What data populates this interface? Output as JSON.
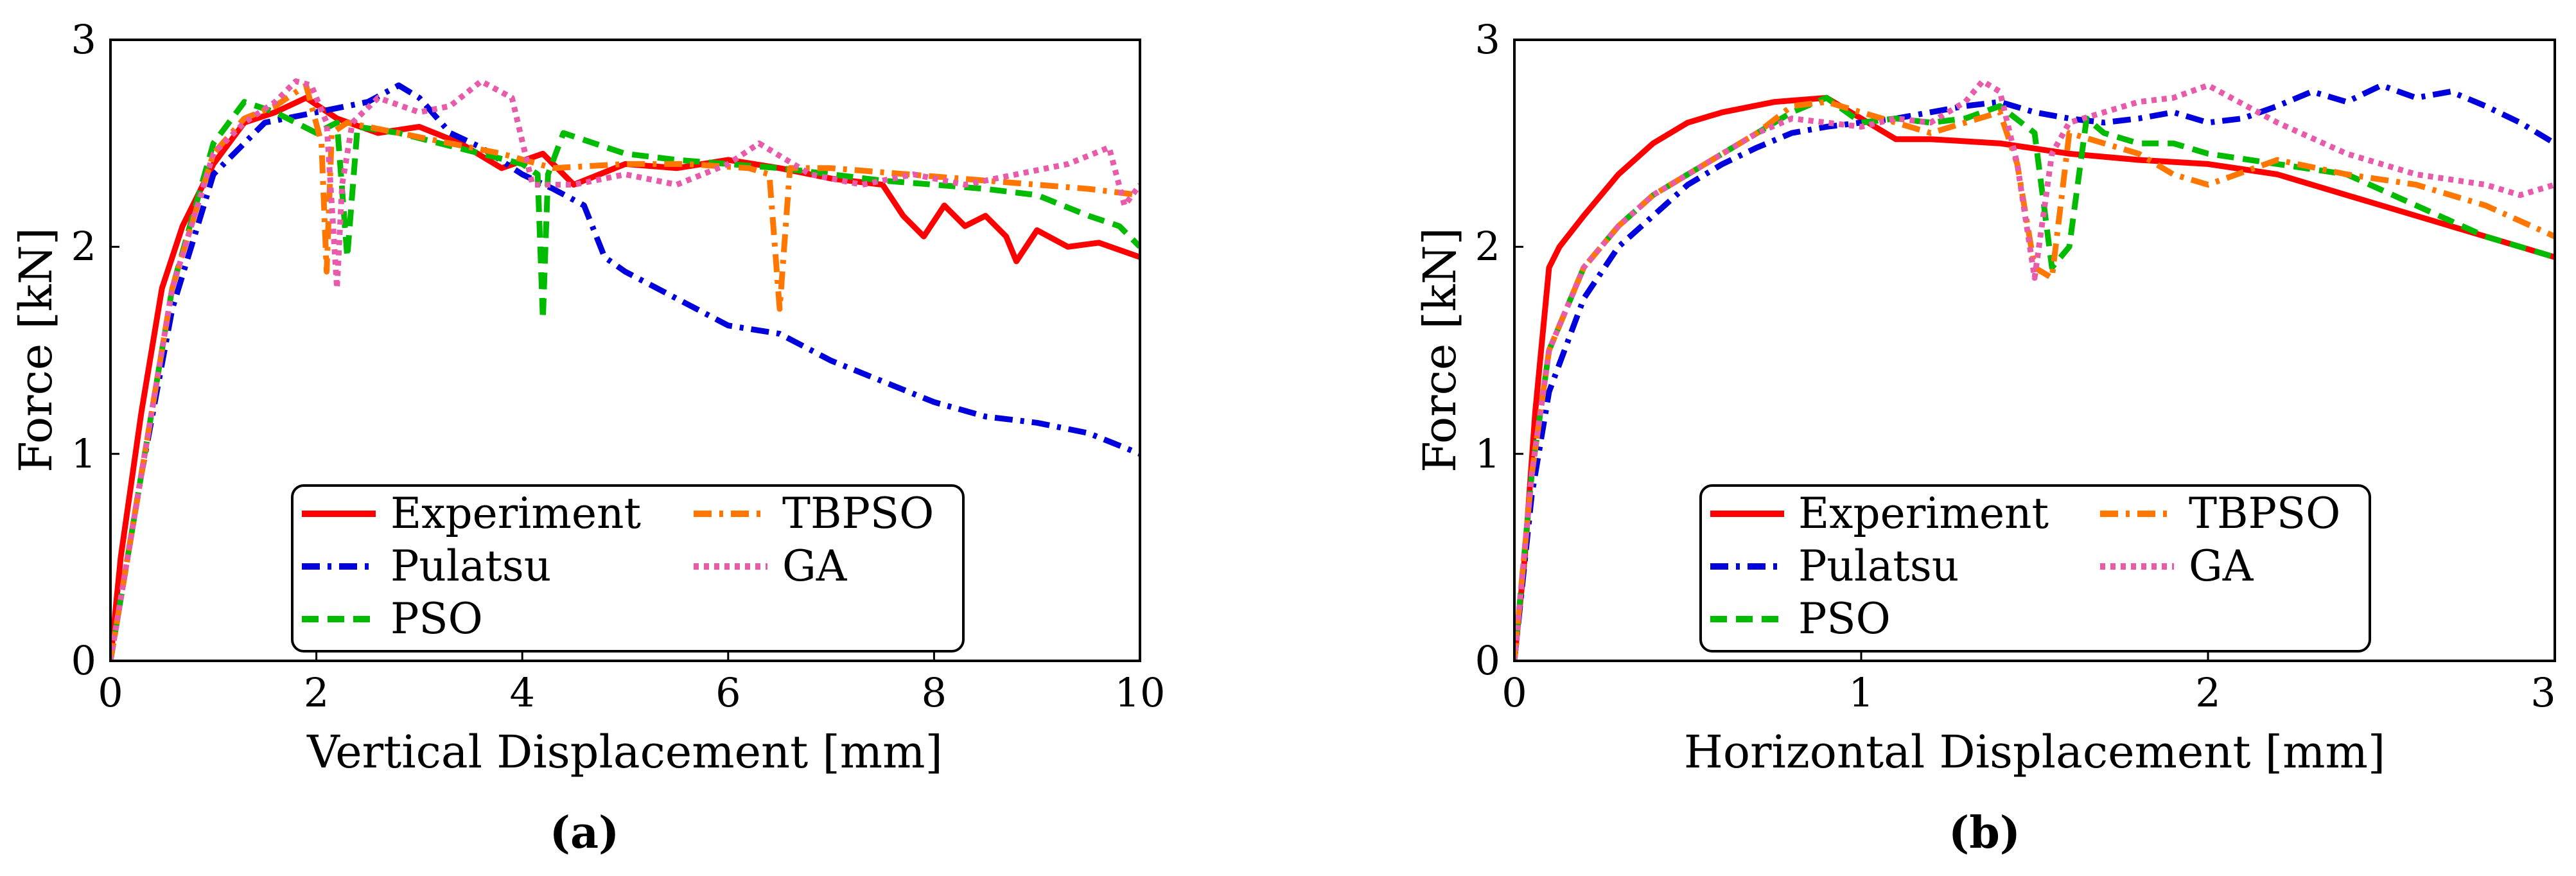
{
  "chart_data": [
    {
      "id": "a",
      "type": "line",
      "caption": "(a)",
      "xlabel": "Vertical Displacement [mm]",
      "ylabel": "Force [kN]",
      "xlim": [
        0,
        10
      ],
      "ylim": [
        0,
        3
      ],
      "xticks": [
        "0",
        "2",
        "4",
        "6",
        "8",
        "10"
      ],
      "yticks": [
        "0",
        "1",
        "2",
        "3"
      ],
      "legend_position": "bottom-center",
      "series": [
        {
          "name": "Experiment",
          "color": "#ff0000",
          "style": "solid",
          "x": [
            0,
            0.1,
            0.3,
            0.5,
            0.7,
            1.0,
            1.3,
            1.6,
            1.9,
            2.2,
            2.6,
            3.0,
            3.4,
            3.8,
            4.2,
            4.5,
            5.0,
            5.5,
            6.0,
            6.5,
            7.0,
            7.5,
            7.7,
            7.9,
            8.1,
            8.3,
            8.5,
            8.7,
            8.8,
            9.0,
            9.3,
            9.6,
            10.0
          ],
          "y": [
            0,
            0.5,
            1.2,
            1.8,
            2.1,
            2.4,
            2.6,
            2.65,
            2.72,
            2.62,
            2.55,
            2.58,
            2.5,
            2.38,
            2.45,
            2.3,
            2.4,
            2.38,
            2.42,
            2.38,
            2.33,
            2.3,
            2.15,
            2.05,
            2.2,
            2.1,
            2.15,
            2.05,
            1.93,
            2.08,
            2.0,
            2.02,
            1.95
          ]
        },
        {
          "name": "Pulatsu",
          "color": "#0000dd",
          "style": "dashdot",
          "x": [
            0,
            0.3,
            0.6,
            1.0,
            1.5,
            2.0,
            2.5,
            2.8,
            3.0,
            3.3,
            3.6,
            4.0,
            4.3,
            4.6,
            4.8,
            5.0,
            5.5,
            6.0,
            6.5,
            7.0,
            7.5,
            8.0,
            8.5,
            9.0,
            9.5,
            10.0
          ],
          "y": [
            0,
            0.9,
            1.7,
            2.35,
            2.6,
            2.65,
            2.7,
            2.78,
            2.72,
            2.55,
            2.48,
            2.35,
            2.28,
            2.2,
            1.95,
            1.88,
            1.75,
            1.62,
            1.58,
            1.45,
            1.35,
            1.25,
            1.18,
            1.15,
            1.1,
            1.0
          ]
        },
        {
          "name": "PSO",
          "color": "#00bb00",
          "style": "dashed",
          "x": [
            0,
            0.3,
            0.6,
            1.0,
            1.3,
            1.6,
            2.0,
            2.2,
            2.3,
            2.4,
            2.8,
            3.2,
            3.6,
            4.0,
            4.15,
            4.2,
            4.25,
            4.4,
            5.0,
            5.5,
            6.0,
            6.5,
            7.0,
            7.5,
            8.0,
            8.5,
            9.0,
            9.5,
            9.8,
            10.0
          ],
          "y": [
            0,
            0.9,
            1.8,
            2.5,
            2.7,
            2.65,
            2.55,
            2.6,
            1.95,
            2.58,
            2.55,
            2.5,
            2.45,
            2.4,
            2.35,
            1.65,
            2.35,
            2.55,
            2.45,
            2.42,
            2.4,
            2.38,
            2.35,
            2.32,
            2.3,
            2.28,
            2.25,
            2.15,
            2.1,
            2.0
          ]
        },
        {
          "name": "TBPSO",
          "color": "#ff7700",
          "style": "dashdot",
          "x": [
            0,
            0.3,
            0.6,
            1.0,
            1.3,
            1.6,
            1.9,
            2.05,
            2.1,
            2.15,
            2.3,
            2.8,
            3.3,
            3.8,
            4.3,
            5.0,
            5.6,
            6.2,
            6.4,
            6.5,
            6.6,
            7.0,
            7.5,
            8.0,
            8.5,
            9.0,
            9.5,
            10.0
          ],
          "y": [
            0,
            0.9,
            1.8,
            2.45,
            2.62,
            2.68,
            2.78,
            2.5,
            1.88,
            2.55,
            2.6,
            2.55,
            2.5,
            2.45,
            2.38,
            2.4,
            2.4,
            2.38,
            2.35,
            1.7,
            2.38,
            2.38,
            2.36,
            2.34,
            2.32,
            2.3,
            2.28,
            2.25
          ]
        },
        {
          "name": "GA",
          "color": "#e85aaa",
          "style": "dotted",
          "x": [
            0,
            0.3,
            0.6,
            1.0,
            1.3,
            1.6,
            1.8,
            1.95,
            2.1,
            2.2,
            2.25,
            2.35,
            2.6,
            3.0,
            3.3,
            3.6,
            3.9,
            4.1,
            4.5,
            5.0,
            5.5,
            6.0,
            6.3,
            6.8,
            7.3,
            7.8,
            8.3,
            8.8,
            9.3,
            9.7,
            9.85,
            10.0
          ],
          "y": [
            0,
            0.9,
            1.8,
            2.45,
            2.6,
            2.7,
            2.8,
            2.78,
            2.6,
            1.8,
            2.3,
            2.6,
            2.72,
            2.65,
            2.68,
            2.8,
            2.72,
            2.3,
            2.3,
            2.35,
            2.3,
            2.4,
            2.5,
            2.35,
            2.3,
            2.35,
            2.3,
            2.35,
            2.4,
            2.48,
            2.2,
            2.3
          ]
        }
      ]
    },
    {
      "id": "b",
      "type": "line",
      "caption": "(b)",
      "xlabel": "Horizontal Displacement [mm]",
      "ylabel": "Force [kN]",
      "xlim": [
        0,
        3
      ],
      "ylim": [
        0,
        3
      ],
      "xticks": [
        "0",
        "1",
        "2",
        "3"
      ],
      "yticks": [
        "0",
        "1",
        "2",
        "3"
      ],
      "legend_position": "bottom-center",
      "series": [
        {
          "name": "Experiment",
          "color": "#ff0000",
          "style": "solid",
          "x": [
            0,
            0.03,
            0.06,
            0.1,
            0.13,
            0.2,
            0.3,
            0.4,
            0.5,
            0.6,
            0.75,
            0.9,
            1.0,
            1.1,
            1.2,
            1.4,
            1.6,
            1.8,
            2.0,
            2.2,
            2.4,
            2.6,
            2.8,
            3.0
          ],
          "y": [
            0,
            0.5,
            1.2,
            1.9,
            2.0,
            2.15,
            2.35,
            2.5,
            2.6,
            2.65,
            2.7,
            2.72,
            2.62,
            2.52,
            2.52,
            2.5,
            2.45,
            2.42,
            2.4,
            2.35,
            2.25,
            2.15,
            2.05,
            1.95
          ]
        },
        {
          "name": "Pulatsu",
          "color": "#0000dd",
          "style": "dashdot",
          "x": [
            0,
            0.05,
            0.1,
            0.2,
            0.3,
            0.4,
            0.5,
            0.6,
            0.7,
            0.8,
            0.9,
            1.0,
            1.1,
            1.2,
            1.3,
            1.4,
            1.5,
            1.6,
            1.7,
            1.8,
            1.9,
            2.0,
            2.1,
            2.2,
            2.3,
            2.4,
            2.5,
            2.6,
            2.7,
            2.8,
            2.9,
            3.0
          ],
          "y": [
            0,
            0.8,
            1.3,
            1.75,
            2.0,
            2.15,
            2.3,
            2.4,
            2.48,
            2.55,
            2.58,
            2.6,
            2.62,
            2.65,
            2.68,
            2.7,
            2.65,
            2.62,
            2.6,
            2.62,
            2.65,
            2.6,
            2.62,
            2.68,
            2.75,
            2.7,
            2.78,
            2.72,
            2.75,
            2.68,
            2.6,
            2.5
          ]
        },
        {
          "name": "PSO",
          "color": "#00bb00",
          "style": "dashed",
          "x": [
            0,
            0.05,
            0.1,
            0.2,
            0.3,
            0.4,
            0.5,
            0.6,
            0.7,
            0.8,
            0.9,
            1.0,
            1.1,
            1.2,
            1.3,
            1.4,
            1.5,
            1.55,
            1.6,
            1.65,
            1.7,
            1.8,
            1.9,
            2.0,
            2.2,
            2.4,
            2.6,
            2.8,
            3.0
          ],
          "y": [
            0,
            0.9,
            1.5,
            1.9,
            2.1,
            2.25,
            2.35,
            2.45,
            2.55,
            2.65,
            2.72,
            2.6,
            2.62,
            2.6,
            2.62,
            2.68,
            2.55,
            1.9,
            2.0,
            2.62,
            2.55,
            2.5,
            2.5,
            2.45,
            2.4,
            2.35,
            2.2,
            2.05,
            1.95
          ]
        },
        {
          "name": "TBPSO",
          "color": "#ff7700",
          "style": "dashdot",
          "x": [
            0,
            0.05,
            0.1,
            0.2,
            0.3,
            0.4,
            0.5,
            0.6,
            0.7,
            0.8,
            0.9,
            1.0,
            1.1,
            1.2,
            1.3,
            1.4,
            1.45,
            1.5,
            1.55,
            1.6,
            1.7,
            1.8,
            1.9,
            2.0,
            2.2,
            2.4,
            2.6,
            2.8,
            3.0
          ],
          "y": [
            0,
            0.9,
            1.5,
            1.9,
            2.1,
            2.25,
            2.35,
            2.45,
            2.55,
            2.68,
            2.7,
            2.65,
            2.6,
            2.55,
            2.6,
            2.65,
            2.4,
            1.9,
            1.85,
            2.55,
            2.5,
            2.45,
            2.35,
            2.3,
            2.42,
            2.35,
            2.3,
            2.2,
            2.05
          ]
        },
        {
          "name": "GA",
          "color": "#e85aaa",
          "style": "dotted",
          "x": [
            0,
            0.05,
            0.1,
            0.2,
            0.3,
            0.4,
            0.5,
            0.6,
            0.7,
            0.8,
            0.9,
            1.0,
            1.1,
            1.2,
            1.3,
            1.35,
            1.4,
            1.45,
            1.5,
            1.55,
            1.6,
            1.7,
            1.8,
            1.9,
            2.0,
            2.2,
            2.4,
            2.6,
            2.8,
            2.9,
            3.0
          ],
          "y": [
            0,
            0.9,
            1.5,
            1.9,
            2.1,
            2.25,
            2.35,
            2.45,
            2.55,
            2.62,
            2.6,
            2.58,
            2.62,
            2.6,
            2.7,
            2.8,
            2.75,
            2.4,
            1.85,
            2.45,
            2.6,
            2.65,
            2.7,
            2.72,
            2.78,
            2.6,
            2.45,
            2.35,
            2.3,
            2.25,
            2.3
          ]
        }
      ]
    }
  ]
}
